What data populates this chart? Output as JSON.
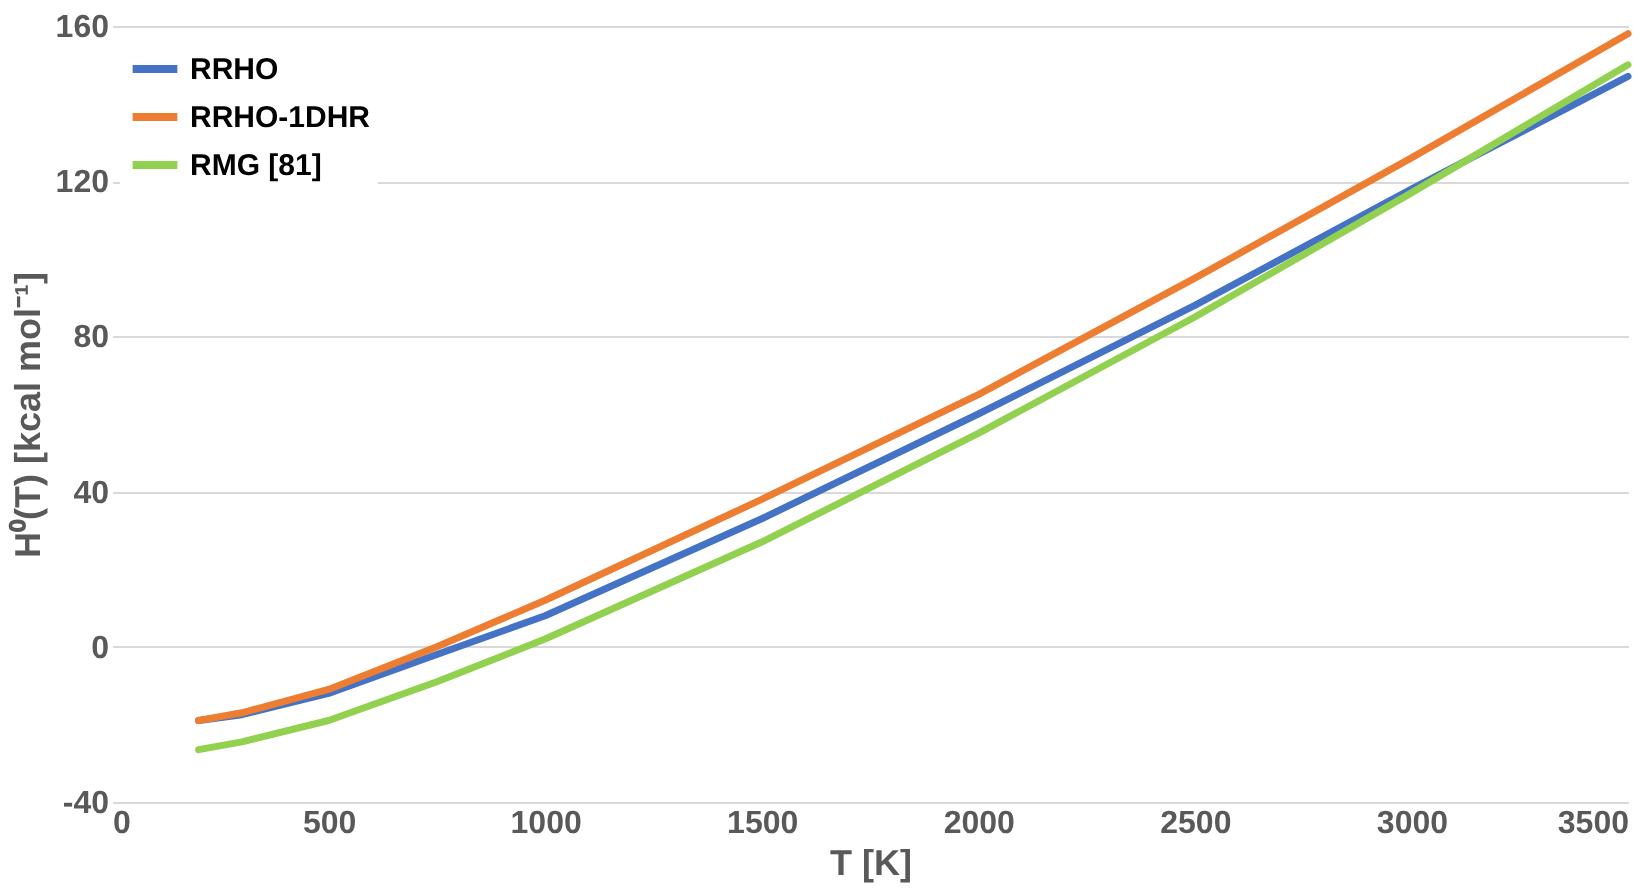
{
  "chart_data": {
    "type": "line",
    "xlabel": "T [K]",
    "ylabel": "H⁰(T) [kcal mol⁻¹]",
    "x": [
      200,
      300,
      500,
      750,
      1000,
      1500,
      2000,
      2500,
      3000,
      3500
    ],
    "series": [
      {
        "name": "RRHO",
        "color": "#4472c4",
        "values": [
          -19,
          -17.5,
          -12,
          -2,
          8,
          33,
          60,
          88,
          118,
          147
        ]
      },
      {
        "name": "RRHO-1DHR",
        "color": "#ed7d31",
        "values": [
          -19,
          -17,
          -11,
          0,
          12,
          38,
          65,
          95,
          126,
          158
        ]
      },
      {
        "name": "RMG [81]",
        "color": "#92d050",
        "values": [
          -26.5,
          -24.5,
          -19,
          -9,
          2,
          27,
          55,
          85,
          117,
          150
        ]
      }
    ],
    "xlim": [
      0,
      3500
    ],
    "xticks": [
      0,
      500,
      1000,
      1500,
      2000,
      2500,
      3000,
      3500
    ],
    "ylim": [
      -40,
      160
    ],
    "yticks": [
      -40,
      0,
      40,
      80,
      120,
      160
    ],
    "grid": "y",
    "legend": "top left",
    "marker": "none",
    "line_style": "solid"
  }
}
